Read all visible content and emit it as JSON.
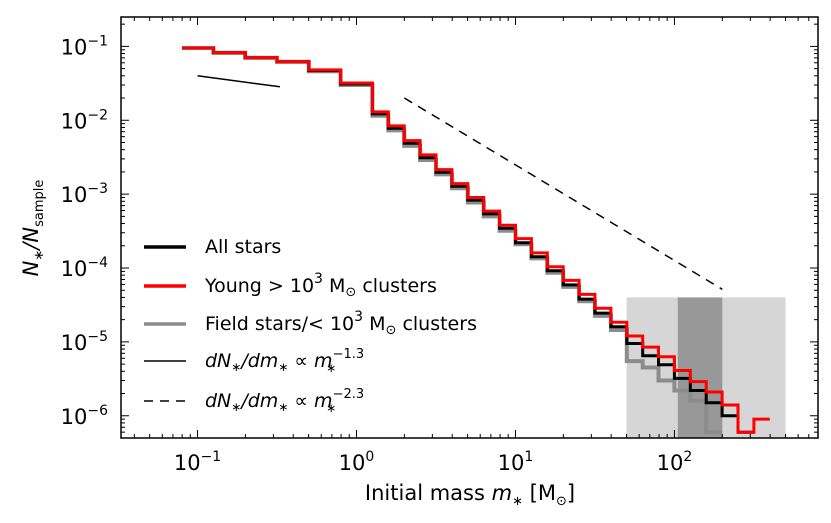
{
  "chart_data": {
    "type": "line",
    "subtype": "step-histogram (log-log)",
    "title": "",
    "xlabel_parts": [
      "Initial mass ",
      "m",
      "∗",
      " [M",
      "⊙",
      "]"
    ],
    "ylabel_parts": [
      "N",
      "∗",
      "/N",
      "sample"
    ],
    "xscale": "log",
    "yscale": "log",
    "xlim": [
      0.033,
      800
    ],
    "ylim": [
      5e-07,
      0.25
    ],
    "x_ticks": [
      {
        "value": 0.1,
        "base": "10",
        "exp": "−1"
      },
      {
        "value": 1,
        "base": "10",
        "exp": "0"
      },
      {
        "value": 10,
        "base": "10",
        "exp": "1"
      },
      {
        "value": 100,
        "base": "10",
        "exp": "2"
      }
    ],
    "y_ticks": [
      {
        "value": 1e-06,
        "base": "10",
        "exp": "−6"
      },
      {
        "value": 1e-05,
        "base": "10",
        "exp": "−5"
      },
      {
        "value": 0.0001,
        "base": "10",
        "exp": "−4"
      },
      {
        "value": 0.001,
        "base": "10",
        "exp": "−3"
      },
      {
        "value": 0.01,
        "base": "10",
        "exp": "−2"
      },
      {
        "value": 0.1,
        "base": "10",
        "exp": "−1"
      }
    ],
    "shaded_regions": [
      {
        "name": "region-light",
        "x": [
          50,
          500
        ],
        "y": [
          5e-07,
          4e-05
        ],
        "color": "#c4c4c4",
        "opacity": 0.7
      },
      {
        "name": "region-dark",
        "x": [
          105,
          200
        ],
        "y": [
          5e-07,
          4e-05
        ],
        "color": "#6e6e6e",
        "opacity": 0.6
      }
    ],
    "series": [
      {
        "name": "Field stars/<10³ M⊙ clusters",
        "color": "#8c8c8c",
        "width": 4,
        "bin_edges": [
          0.08,
          0.1259,
          0.1995,
          0.3162,
          0.5012,
          0.7943,
          1.259,
          1.585,
          1.995,
          2.512,
          3.162,
          3.981,
          5.012,
          6.31,
          7.943,
          10,
          12.59,
          15.85,
          19.95,
          25.12,
          31.62,
          39.81,
          50.12,
          63.1,
          79.43,
          100,
          125.9,
          158.5,
          199.5
        ],
        "values": [
          0.095,
          0.082,
          0.07,
          0.062,
          0.046,
          0.03,
          0.0115,
          0.0073,
          0.0045,
          0.0029,
          0.00185,
          0.0012,
          0.00077,
          0.0005,
          0.00032,
          0.00021,
          0.000135,
          8.65e-05,
          5.55e-05,
          3.55e-05,
          2.25e-05,
          1.45e-05,
          5.5e-06,
          4.5e-06,
          3e-06,
          2.2e-06,
          1.6e-06,
          6e-07
        ]
      },
      {
        "name": "All stars",
        "color": "#000000",
        "width": 3,
        "bin_edges": [
          0.08,
          0.1259,
          0.1995,
          0.3162,
          0.5012,
          0.7943,
          1.259,
          1.585,
          1.995,
          2.512,
          3.162,
          3.981,
          5.012,
          6.31,
          7.943,
          10,
          12.59,
          15.85,
          19.95,
          25.12,
          31.62,
          39.81,
          50.12,
          63.1,
          79.43,
          100,
          125.9,
          158.5,
          199.5,
          251.2,
          316.2
        ],
        "values": [
          0.095,
          0.082,
          0.07,
          0.062,
          0.047,
          0.031,
          0.0122,
          0.0078,
          0.0049,
          0.0031,
          0.00198,
          0.00128,
          0.00083,
          0.00054,
          0.000345,
          0.00022,
          0.000142,
          9.2e-05,
          5.9e-05,
          3.8e-05,
          2.45e-05,
          1.6e-05,
          9.5e-06,
          6.5e-06,
          4.9e-06,
          3.2e-06,
          2.2e-06,
          1.5e-06,
          1e-06,
          6e-07
        ]
      },
      {
        "name": "Young >10³ M⊙ clusters",
        "color": "#ff0000",
        "width": 3,
        "bin_edges": [
          0.08,
          0.1259,
          0.1995,
          0.3162,
          0.5012,
          0.7943,
          1.259,
          1.585,
          1.995,
          2.512,
          3.162,
          3.981,
          5.012,
          6.31,
          7.943,
          10,
          12.59,
          15.85,
          19.95,
          25.12,
          31.62,
          39.81,
          50.12,
          63.1,
          79.43,
          100,
          125.9,
          158.5,
          199.5,
          251.2,
          316.2,
          398.1
        ],
        "values": [
          0.095,
          0.082,
          0.07,
          0.062,
          0.048,
          0.032,
          0.013,
          0.0084,
          0.0053,
          0.0034,
          0.00215,
          0.00139,
          0.0009,
          0.00059,
          0.00038,
          0.00025,
          0.00016,
          0.000104,
          6.8e-05,
          4.4e-05,
          2.85e-05,
          1.85e-05,
          1.2e-05,
          8.5e-06,
          6.3e-06,
          4.1e-06,
          2.9e-06,
          2.1e-06,
          1.4e-06,
          6e-07,
          9e-07
        ]
      }
    ],
    "reference_lines": [
      {
        "name": "slope -1.3",
        "style": "solid",
        "x": [
          0.1,
          0.33
        ],
        "y": [
          0.04,
          0.0284
        ]
      },
      {
        "name": "slope -2.3",
        "style": "dashed",
        "x": [
          2.0,
          200
        ],
        "y": [
          0.02,
          5.15e-05
        ]
      }
    ],
    "legend": {
      "position": "lower-left",
      "entries": [
        {
          "parts": [
            "All stars"
          ],
          "style": "solid",
          "color": "#000000",
          "width": 3.5
        },
        {
          "parts": [
            "Young ",
            "> 10",
            "3",
            " M",
            "⊙",
            " clusters"
          ],
          "style": "solid",
          "color": "#ff0000",
          "width": 3.5
        },
        {
          "parts": [
            "Field stars/",
            "< 10",
            "3",
            " M",
            "⊙",
            " clusters"
          ],
          "style": "solid",
          "color": "#8c8c8c",
          "width": 3.5
        },
        {
          "parts": [
            "dN",
            "∗",
            "/dm",
            "∗",
            " ∝ m",
            "−1.3",
            "∗"
          ],
          "style": "solid",
          "color": "#000000",
          "width": 1.5
        },
        {
          "parts": [
            "dN",
            "∗",
            "/dm",
            "∗",
            " ∝ m",
            "−2.3",
            "∗"
          ],
          "style": "dashed",
          "color": "#000000",
          "width": 1.5
        }
      ]
    }
  }
}
